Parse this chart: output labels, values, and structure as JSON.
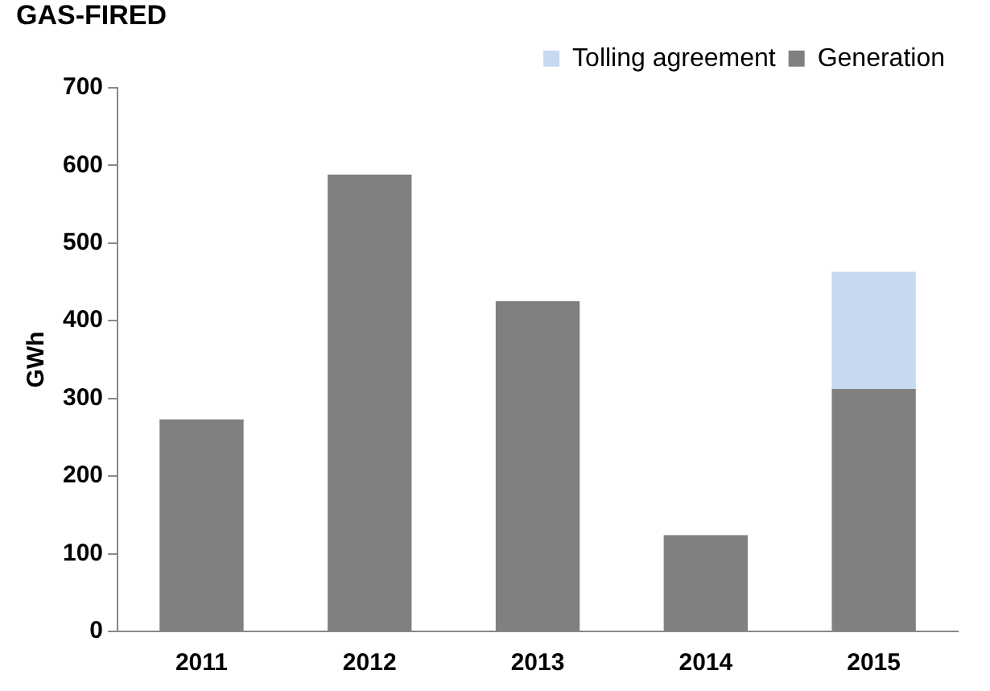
{
  "chart_data": {
    "type": "bar",
    "title": "GAS-FIRED",
    "ylabel": "GWh",
    "categories": [
      "2011",
      "2012",
      "2013",
      "2014",
      "2015"
    ],
    "series": [
      {
        "name": "Generation",
        "color": "#808080",
        "values": [
          273,
          588,
          425,
          124,
          312
        ]
      },
      {
        "name": "Tolling agreement",
        "color": "#c6d9f1",
        "values": [
          null,
          null,
          null,
          null,
          151
        ]
      }
    ],
    "stacked": true,
    "ylim": [
      0,
      700
    ],
    "yticks": [
      0,
      100,
      200,
      300,
      400,
      500,
      600,
      700
    ],
    "grid": false,
    "legend": "top right"
  }
}
